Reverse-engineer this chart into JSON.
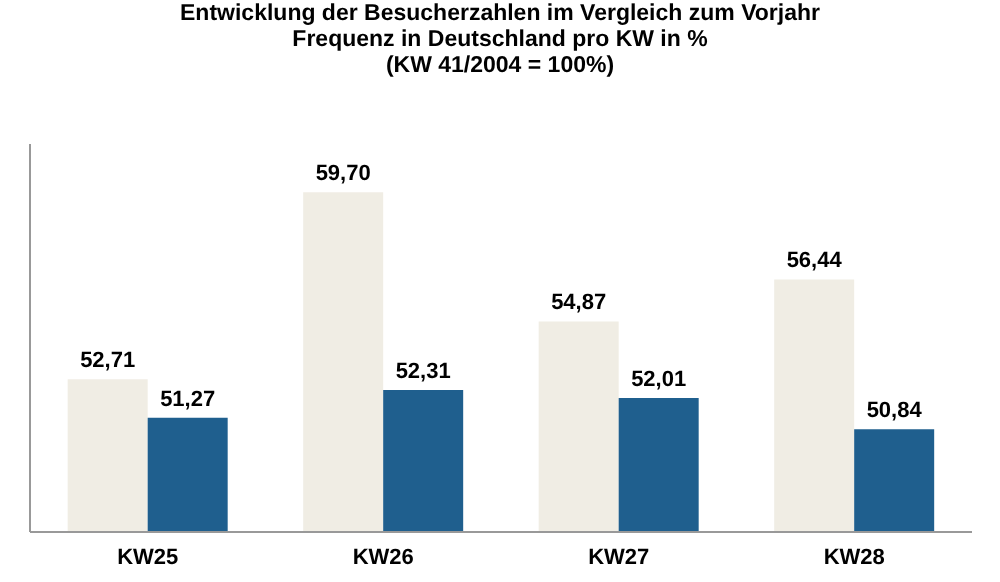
{
  "chart_data": {
    "type": "bar",
    "title": "Entwicklung der Besucherzahlen im Vergleich zum Vorjahr\nFrequenz in Deutschland pro KW in %\n(KW 41/2004 = 100%)",
    "categories": [
      "KW25",
      "KW26",
      "KW27",
      "KW28"
    ],
    "series": [
      {
        "color": "#f0ede4",
        "values": [
          52.71,
          59.7,
          54.87,
          56.44
        ],
        "value_labels": [
          "52,71",
          "59,70",
          "54,87",
          "56,44"
        ]
      },
      {
        "color": "#1f5f8e",
        "values": [
          51.27,
          52.31,
          52.01,
          50.84
        ],
        "value_labels": [
          "51,27",
          "52,31",
          "52,01",
          "50,84"
        ]
      }
    ],
    "ylim": [
      47,
      61.5
    ],
    "tick_labels": "x",
    "grid": false,
    "legend": false
  }
}
